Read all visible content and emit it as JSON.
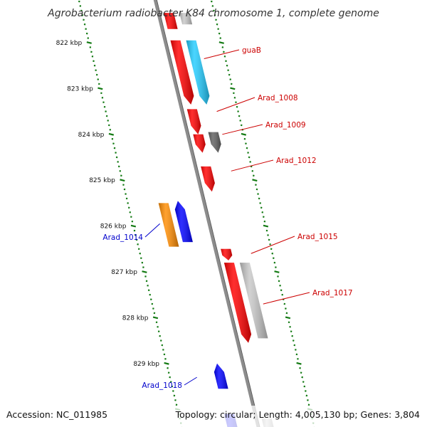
{
  "title": "Agrobacterium radiobacter K84 chromosome 1, complete genome",
  "footer": {
    "accession": "Accession: NC_011985",
    "topology": "Topology: circular; Length: 4,005,130 bp; Genes: 3,804"
  },
  "colors": {
    "backbone": "#8c8c8c",
    "tick": "#137a13",
    "label_forward": "#cc0000",
    "label_reverse": "#0000cc",
    "red": "#ff0000",
    "cyan": "#22ccff",
    "grey": "#c8c8c8",
    "darkgrey": "#606060",
    "blue": "#0000ff",
    "orange": "#ff8c00"
  },
  "scale": {
    "unit": "kbp",
    "ticks": [
      {
        "value": 822,
        "label": "822 kbp"
      },
      {
        "value": 823,
        "label": "823 kbp"
      },
      {
        "value": 824,
        "label": "824 kbp"
      },
      {
        "value": 825,
        "label": "825 kbp"
      },
      {
        "value": 826,
        "label": "826 kbp"
      },
      {
        "value": 827,
        "label": "827 kbp"
      },
      {
        "value": 828,
        "label": "828 kbp"
      },
      {
        "value": 829,
        "label": "829 kbp"
      }
    ]
  },
  "genes": [
    {
      "name": "top-partial-red",
      "track": "inner1",
      "start": 821.35,
      "end": 821.7,
      "color": "red",
      "shape": "box"
    },
    {
      "name": "top-partial-grey",
      "track": "outer1",
      "start": 821.35,
      "end": 821.6,
      "color": "grey",
      "shape": "box"
    },
    {
      "name": "red-822",
      "track": "inner1",
      "start": 821.95,
      "end": 823.35,
      "color": "red",
      "shape": "arrow"
    },
    {
      "name": "cyan-822",
      "track": "outer1",
      "start": 821.95,
      "end": 823.35,
      "color": "cyan",
      "shape": "arrow"
    },
    {
      "name": "red-823",
      "track": "inner1",
      "start": 823.45,
      "end": 824.0,
      "color": "red",
      "shape": "arrow"
    },
    {
      "name": "red-824",
      "track": "inner1",
      "start": 824.0,
      "end": 824.4,
      "color": "red",
      "shape": "arrow"
    },
    {
      "name": "darkgrey-824",
      "track": "outer1",
      "start": 823.95,
      "end": 824.4,
      "color": "darkgrey",
      "shape": "arrow"
    },
    {
      "name": "red-825",
      "track": "inner1",
      "start": 824.7,
      "end": 825.25,
      "color": "red",
      "shape": "arrow"
    },
    {
      "name": "orange-826",
      "track": "ninner2",
      "start": 825.5,
      "end": 826.45,
      "color": "orange",
      "shape": "box"
    },
    {
      "name": "blue-826",
      "track": "ninner1",
      "start": 825.45,
      "end": 826.35,
      "color": "blue",
      "shape": "arrow_left"
    },
    {
      "name": "red-827",
      "track": "inner1",
      "start": 826.5,
      "end": 826.75,
      "color": "red",
      "shape": "arrow"
    },
    {
      "name": "red-828",
      "track": "inner1",
      "start": 826.8,
      "end": 828.55,
      "color": "red",
      "shape": "arrow"
    },
    {
      "name": "grey-828",
      "track": "outer1",
      "start": 826.8,
      "end": 828.45,
      "color": "grey",
      "shape": "box"
    },
    {
      "name": "blue-829",
      "track": "ninner1",
      "start": 829.0,
      "end": 829.55,
      "color": "blue",
      "shape": "arrow_left"
    },
    {
      "name": "blue-bottom",
      "track": "ninner1",
      "start": 830.1,
      "end": 830.5,
      "color": "blue",
      "shape": "box"
    },
    {
      "name": "grey-bottom",
      "track": "inner1",
      "start": 830.2,
      "end": 830.5,
      "color": "grey",
      "shape": "box"
    }
  ],
  "labels": [
    {
      "text": "guaB",
      "side": "right",
      "strand": "forward",
      "gene_pos": 822.35
    },
    {
      "text": "Arad_1008",
      "side": "right",
      "strand": "forward",
      "gene_pos": 823.5
    },
    {
      "text": "Arad_1009",
      "side": "right",
      "strand": "forward",
      "gene_pos": 824.0
    },
    {
      "text": "Arad_1012",
      "side": "right",
      "strand": "forward",
      "gene_pos": 824.8
    },
    {
      "text": "Arad_1015",
      "side": "right",
      "strand": "forward",
      "gene_pos": 826.6
    },
    {
      "text": "Arad_1017",
      "side": "right",
      "strand": "forward",
      "gene_pos": 827.7
    },
    {
      "text": "Arad_1014",
      "side": "left",
      "strand": "reverse",
      "gene_pos": 825.95
    },
    {
      "text": "Arad_1018",
      "side": "left",
      "strand": "reverse",
      "gene_pos": 829.3
    }
  ]
}
